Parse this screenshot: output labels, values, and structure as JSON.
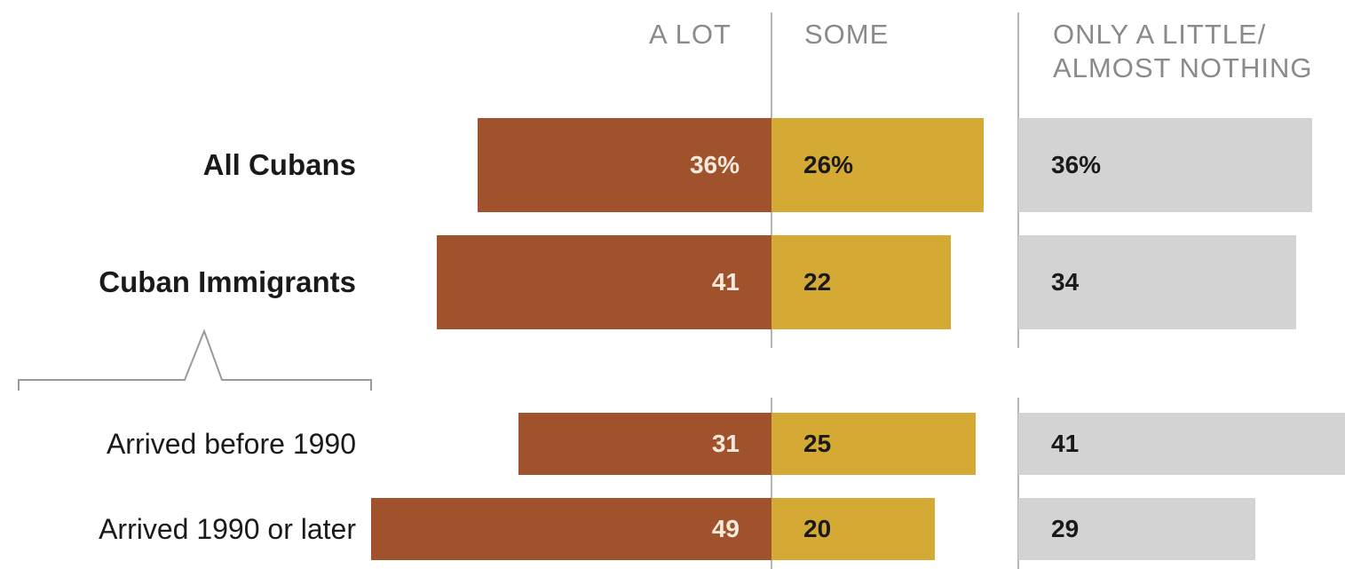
{
  "chart_data": {
    "type": "bar",
    "layout": "diverging stacked bar",
    "columns": [
      "A LOT",
      "SOME",
      "ONLY A LITTLE/ ALMOST NOTHING"
    ],
    "categories": [
      "All Cubans",
      "Cuban Immigrants",
      "Arrived before 1990",
      "Arrived 1990 or later"
    ],
    "series": [
      {
        "name": "A LOT",
        "values": [
          36,
          41,
          31,
          49
        ],
        "color": "#a0522d",
        "labels": [
          "36%",
          "41",
          "31",
          "49"
        ]
      },
      {
        "name": "SOME",
        "values": [
          26,
          22,
          25,
          20
        ],
        "color": "#d4aa34",
        "labels": [
          "26%",
          "22",
          "25",
          "20"
        ]
      },
      {
        "name": "ONLY A LITTLE/ ALMOST NOTHING",
        "values": [
          36,
          34,
          41,
          29
        ],
        "color": "#d3d3d3",
        "labels": [
          "36%",
          "34",
          "41",
          "29"
        ]
      }
    ],
    "bracket_under": "Cuban Immigrants",
    "grid": false,
    "legend": "none (column headers at top)"
  },
  "headers": {
    "a_lot": "A LOT",
    "some": "SOME",
    "little_line1": "ONLY A LITTLE/",
    "little_line2": "ALMOST NOTHING"
  }
}
